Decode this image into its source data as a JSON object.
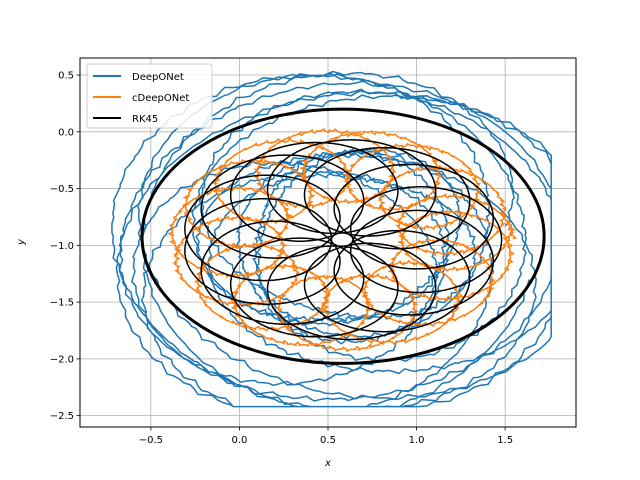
{
  "chart_data": {
    "type": "line",
    "title": "",
    "xlabel": "x",
    "ylabel": "y",
    "xlim": [
      -0.9,
      1.9
    ],
    "ylim": [
      -2.6,
      0.65
    ],
    "x_ticks": [
      -0.5,
      0.0,
      0.5,
      1.0,
      1.5
    ],
    "x_tick_labels": [
      "−0.5",
      "0.0",
      "0.5",
      "1.0",
      "1.5"
    ],
    "y_ticks": [
      -2.5,
      -2.0,
      -1.5,
      -1.0,
      -0.5,
      0.0,
      0.5
    ],
    "y_tick_labels": [
      "−2.5",
      "−2.0",
      "−1.5",
      "−1.0",
      "−0.5",
      "0.0",
      "0.5"
    ],
    "grid": true,
    "legend_position": "top-left",
    "series": [
      {
        "name": "DeepONet",
        "color": "#1f77b4",
        "description_points": {
          "center": [
            0.58,
            -1.0
          ],
          "x_range": [
            -0.72,
            1.76
          ],
          "y_range": [
            -2.42,
            0.53
          ],
          "loops": 14,
          "jagged": true
        }
      },
      {
        "name": "cDeepONet",
        "color": "#ff7f0e",
        "description_points": {
          "center": [
            0.58,
            -0.95
          ],
          "x_range": [
            -0.34,
            1.5
          ],
          "y_range": [
            -1.83,
            -0.02
          ],
          "loops": 16,
          "jagged": true
        }
      },
      {
        "name": "RK45",
        "color": "#000000",
        "description_points": {
          "center": [
            0.58,
            -0.95
          ],
          "inner_radius": 0.18,
          "outer_radius_x": 0.92,
          "outer_radius_y": 0.9,
          "outer_ring_x_range": [
            -0.55,
            1.72
          ],
          "outer_ring_y_range": [
            -2.04,
            0.2
          ],
          "loops": 14
        }
      }
    ]
  }
}
